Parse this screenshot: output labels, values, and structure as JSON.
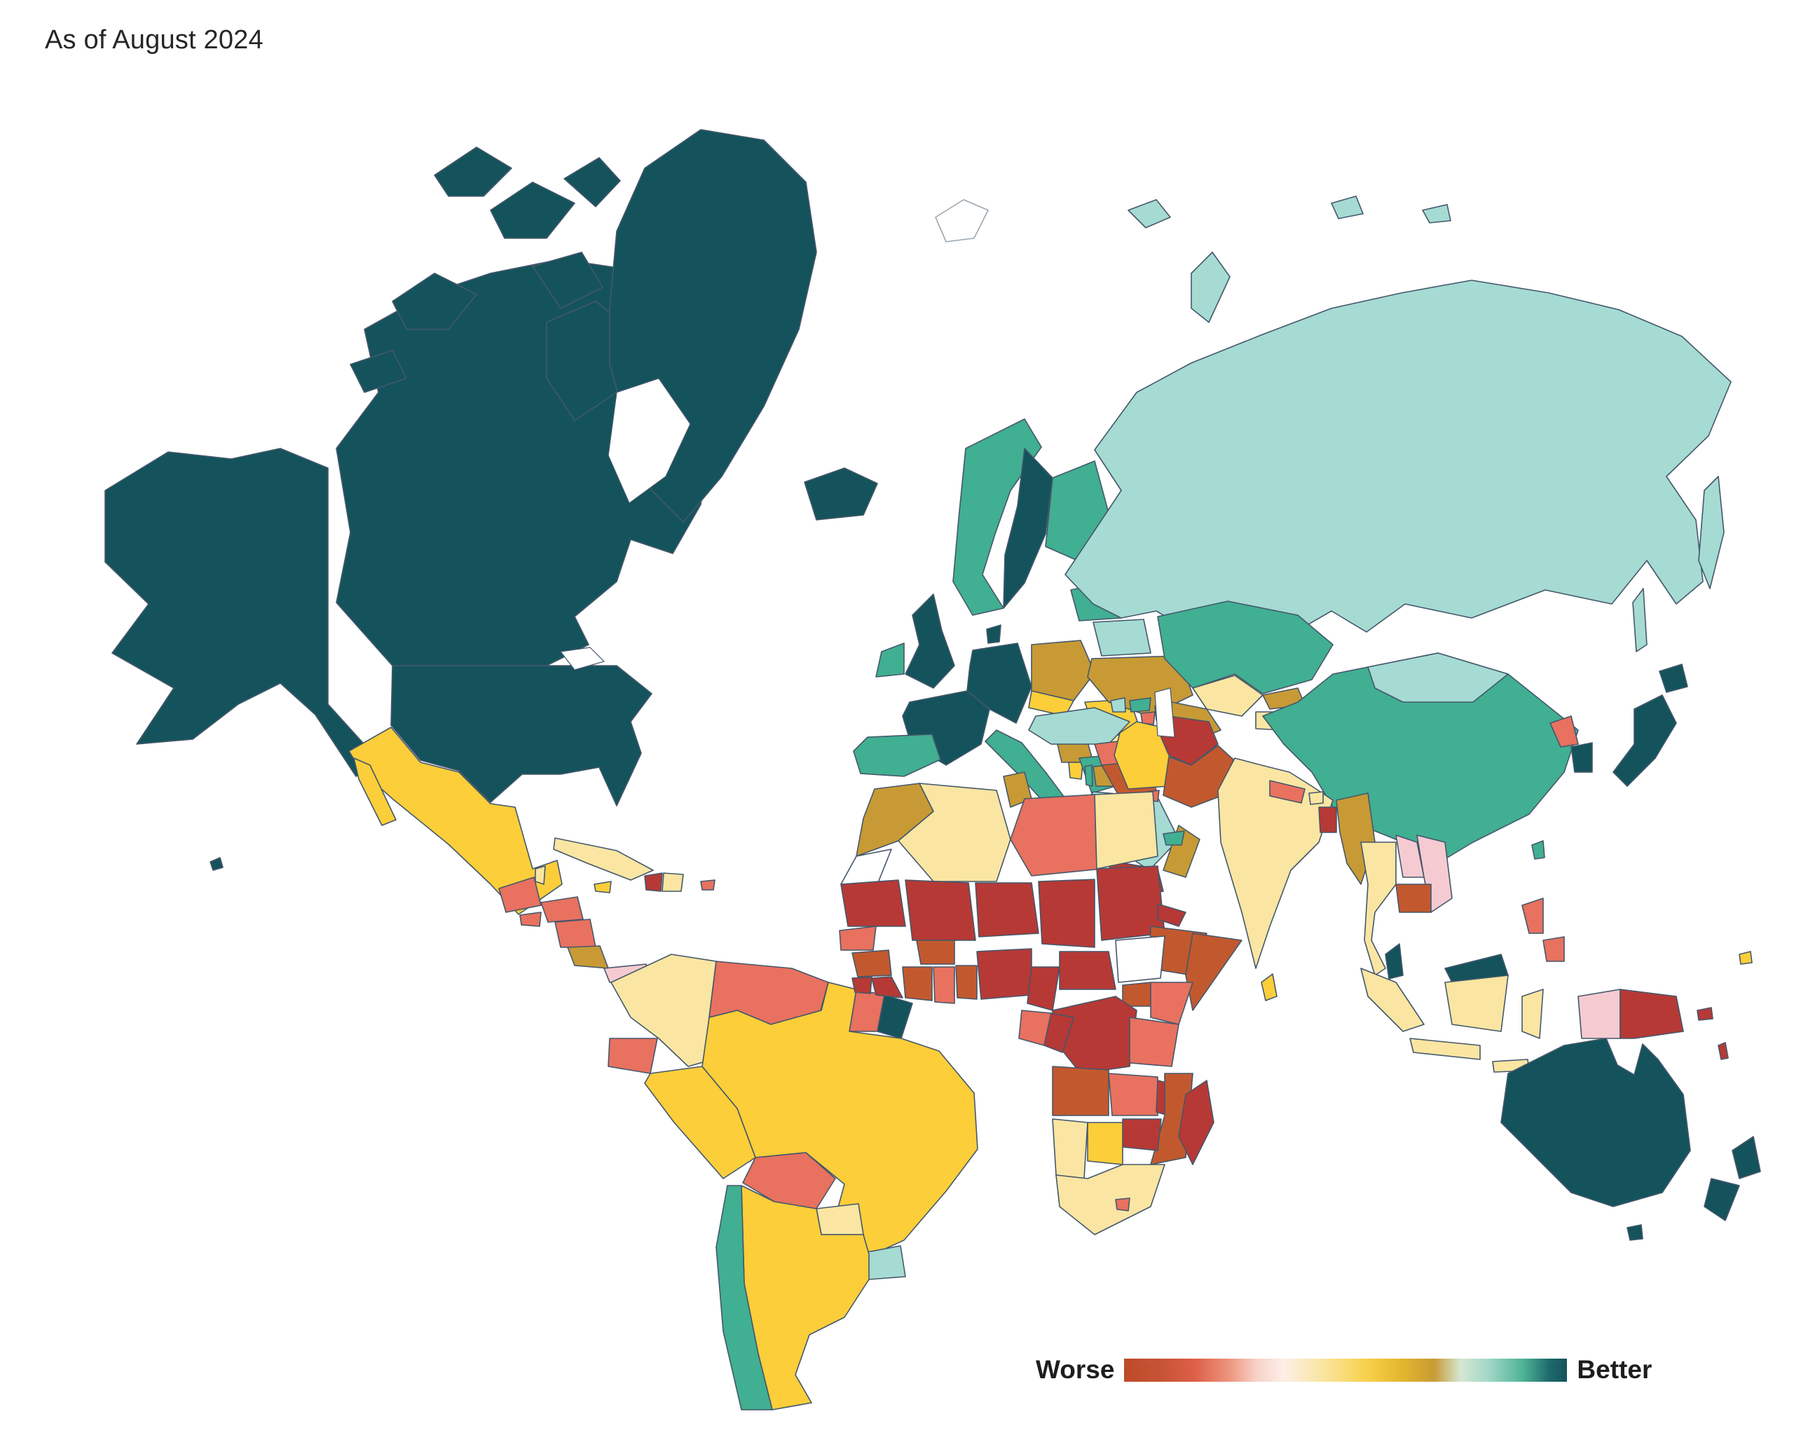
{
  "title": "As of August 2024",
  "legend": {
    "worse_label": "Worse",
    "better_label": "Better",
    "gradient_stops": [
      "#BC4B28",
      "#DD5F47",
      "#EE9781",
      "#F8D2C8",
      "#FCEFE8",
      "#FAE5A0",
      "#F8D04A",
      "#C89B35",
      "#D5E7D3",
      "#A5D8C8",
      "#4FB496",
      "#15535C"
    ]
  },
  "palette": {
    "darkteal": "#14535C",
    "green": "#41AF91",
    "paleteal": "#A5DBD3",
    "paleyellow": "#FAE6A2",
    "yellow": "#FBCE3A",
    "gold": "#C79A35",
    "salmon": "#E8715F",
    "pink": "#F5CBD1",
    "rust": "#C2592E",
    "darkred": "#B63936",
    "nodata": "#FFFFFF",
    "stroke": "#44576B",
    "stroke_light": "#9AA7B0"
  },
  "countries": {
    "canada": "darkteal",
    "usa": "darkteal",
    "greenland": "darkteal",
    "iceland": "darkteal",
    "mexico": "yellow",
    "guatemala": "salmon",
    "belize": "paleyellow",
    "honduras": "salmon",
    "elsalvador": "salmon",
    "nicaragua": "salmon",
    "costarica": "gold",
    "panama": "pink",
    "cuba": "paleyellow",
    "jamaica": "yellow",
    "haiti": "darkred",
    "dominicanrep": "paleyellow",
    "puertorico": "salmon",
    "colombia": "paleyellow",
    "venezuela": "salmon",
    "guyana": "pink",
    "suriname": "salmon",
    "frenchguiana": "darkteal",
    "ecuador": "salmon",
    "peru": "yellow",
    "brazil": "yellow",
    "bolivia": "salmon",
    "paraguay": "paleyellow",
    "uruguay": "paleteal",
    "argentina": "yellow",
    "chile": "green",
    "norway": "green",
    "sweden": "darkteal",
    "finland": "green",
    "denmark": "darkteal",
    "uk": "darkteal",
    "ireland": "green",
    "france": "darkteal",
    "germanyblock": "darkteal",
    "spain": "green",
    "italy": "green",
    "poland": "gold",
    "czechoslovakia": "yellow",
    "hungary": "yellow",
    "romania": "yellow",
    "bulgaria": "paleyellow",
    "serbia": "gold",
    "albania": "yellow",
    "greece": "green",
    "ukraine": "gold",
    "belarus": "paleteal",
    "baltics": "green",
    "moldova": "paleteal",
    "svalbard": "nodata",
    "russia": "paleteal",
    "russiaarctic1": "paleteal",
    "russiaarctic2": "paleteal",
    "russiaarctic3": "paleteal",
    "russiaarctic4": "paleteal",
    "sakhalin": "paleteal",
    "kamchatka": "paleteal",
    "kazakhstan": "green",
    "uzbekistan": "paleyellow",
    "turkmenistan": "gold",
    "kyrgyzstan": "gold",
    "tajikistan": "paleyellow",
    "georgia": "green",
    "armenia": "salmon",
    "azerbaijan": "yellow",
    "turkey": "paleteal",
    "syria": "salmon",
    "israel": "green",
    "jordan": "gold",
    "iraq": "rust",
    "iran": "yellow",
    "afghanistan": "darkred",
    "pakistan": "rust",
    "saudiarabia": "paleteal",
    "yemen": "darkred",
    "oman": "gold",
    "uae": "green",
    "kuwait": "salmon",
    "morocco": "gold",
    "westernsahara": "nodata",
    "algeria": "paleyellow",
    "tunisia": "gold",
    "libya": "salmon",
    "egypt": "paleyellow",
    "mauritania": "darkred",
    "mali": "darkred",
    "niger": "darkred",
    "chad": "darkred",
    "sudan": "darkred",
    "eritrea": "darkred",
    "ethiopia": "rust",
    "somalia": "rust",
    "senegal": "salmon",
    "guinea": "rust",
    "sierraleone": "darkred",
    "liberia": "darkred",
    "ivorycoast": "rust",
    "burkinafaso": "rust",
    "ghana": "salmon",
    "togobenin": "rust",
    "nigeria": "darkred",
    "cameroon": "darkred",
    "centralafricanrep": "darkred",
    "southsudan": "nodata",
    "uganda": "rust",
    "kenya": "salmon",
    "drcongo": "darkred",
    "gabon": "salmon",
    "congo": "darkred",
    "tanzania": "salmon",
    "angola": "rust",
    "zambia": "salmon",
    "malawi": "darkred",
    "mozambique": "rust",
    "zimbabwe": "darkred",
    "botswana": "yellow",
    "namibia": "paleyellow",
    "southafrica": "paleyellow",
    "lesotho": "salmon",
    "madagascar": "darkred",
    "china": "green",
    "mongolia": "paleteal",
    "northkorea": "salmon",
    "southkorea": "darkteal",
    "japan": "darkteal",
    "hokkaido": "darkteal",
    "taiwan": "green",
    "india": "paleyellow",
    "nepal": "salmon",
    "bhutan": "paleyellow",
    "bangladesh": "darkred",
    "srilanka": "yellow",
    "myanmar": "gold",
    "thailand": "paleyellow",
    "laos": "pink",
    "vietnam": "pink",
    "cambodia": "rust",
    "malaysia": "darkteal",
    "malaysiaborneo": "darkteal",
    "sumatra": "paleyellow",
    "java": "paleyellow",
    "kalimantan": "paleyellow",
    "sulawesi": "paleyellow",
    "lessersunda": "paleyellow",
    "easttimor": "rust",
    "philippinesluzon": "salmon",
    "philippinesmindanao": "salmon",
    "papuaindonesia": "pink",
    "papuanewguinea": "darkred",
    "solomonislands": "darkred",
    "vanuatu": "darkred",
    "fiji": "yellow",
    "australia": "darkteal",
    "tasmania": "darkteal",
    "nznorth": "darkteal",
    "nzsouth": "darkteal",
    "hawaii": "darkteal"
  }
}
